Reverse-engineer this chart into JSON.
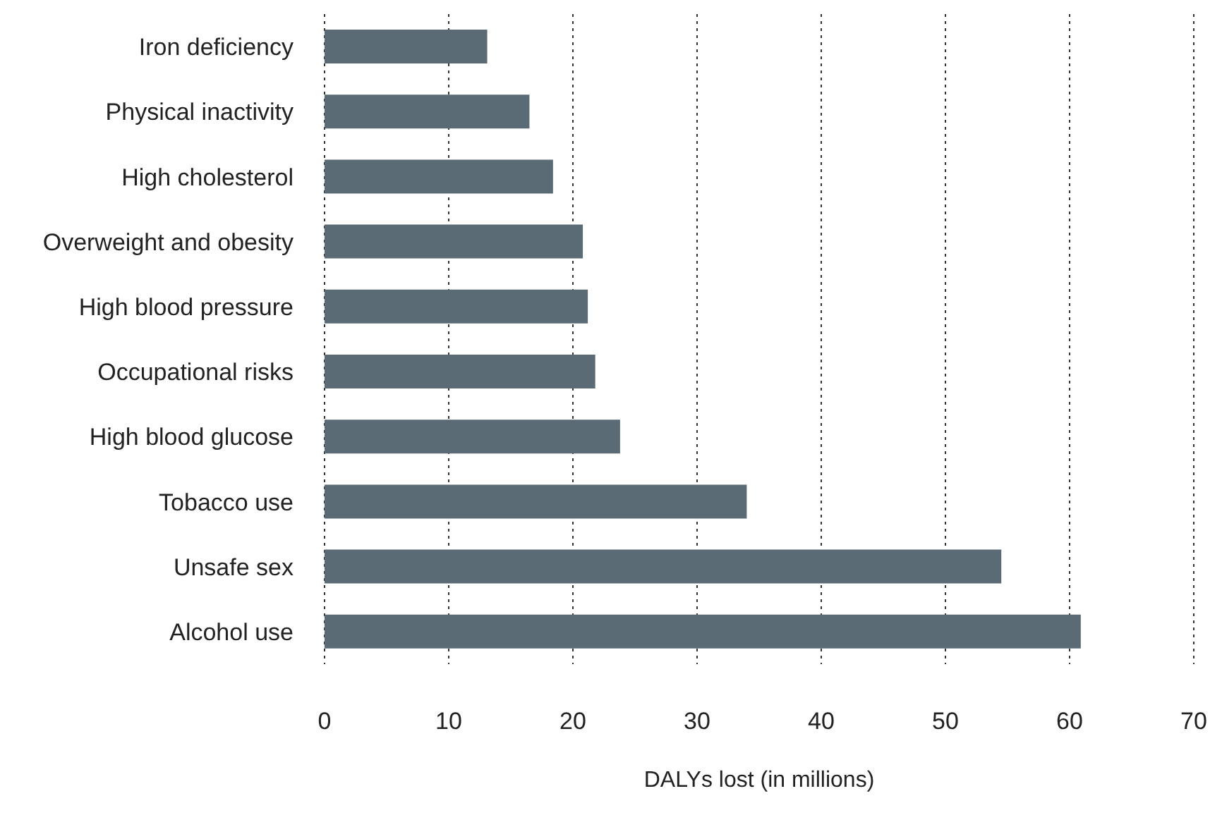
{
  "chart_data": {
    "type": "bar",
    "orientation": "horizontal",
    "xlabel": "DALYs lost (in millions)",
    "categories": [
      "Iron deficiency",
      "Physical inactivity",
      "High cholesterol",
      "Overweight and obesity",
      "High blood pressure",
      "Occupational risks",
      "High blood glucose",
      "Tobacco use",
      "Unsafe sex",
      "Alcohol use"
    ],
    "values": [
      13.1,
      16.5,
      18.4,
      20.8,
      21.2,
      21.8,
      23.8,
      34.0,
      54.5,
      60.9
    ],
    "color": "#5a6b75",
    "xlim": [
      0,
      70
    ],
    "xticks": [
      0,
      10,
      20,
      30,
      40,
      50,
      60,
      70
    ],
    "grid": "x"
  }
}
